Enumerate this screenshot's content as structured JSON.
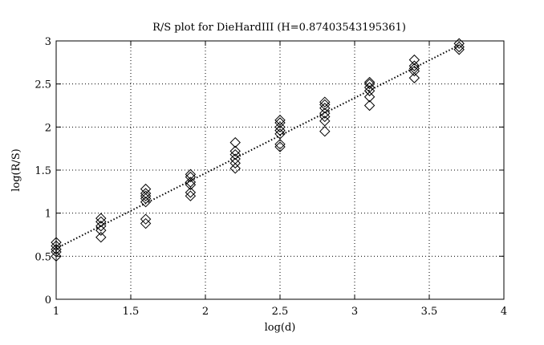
{
  "chart_data": {
    "type": "scatter",
    "title": "R/S plot for DieHardIII (H=0.87403543195361)",
    "xlabel": "log(d)",
    "ylabel": "log(R/S)",
    "xlim": [
      1,
      4
    ],
    "ylim": [
      0,
      3
    ],
    "xticks": [
      {
        "value": 1,
        "label": "1"
      },
      {
        "value": 1.5,
        "label": "1.5"
      },
      {
        "value": 2,
        "label": "2"
      },
      {
        "value": 2.5,
        "label": "2.5"
      },
      {
        "value": 3,
        "label": "3"
      },
      {
        "value": 3.5,
        "label": "3.5"
      },
      {
        "value": 4,
        "label": "4"
      }
    ],
    "yticks": [
      {
        "value": 0,
        "label": "0"
      },
      {
        "value": 0.5,
        "label": "0.5"
      },
      {
        "value": 1,
        "label": "1"
      },
      {
        "value": 1.5,
        "label": "1.5"
      },
      {
        "value": 2,
        "label": "2"
      },
      {
        "value": 2.5,
        "label": "2.5"
      },
      {
        "value": 3,
        "label": "3"
      }
    ],
    "grid": true,
    "marker": "diamond",
    "points": [
      {
        "x": 1.0,
        "y": 0.5
      },
      {
        "x": 1.0,
        "y": 0.55
      },
      {
        "x": 1.0,
        "y": 0.58
      },
      {
        "x": 1.0,
        "y": 0.62
      },
      {
        "x": 1.0,
        "y": 0.66
      },
      {
        "x": 1.3,
        "y": 0.72
      },
      {
        "x": 1.3,
        "y": 0.8
      },
      {
        "x": 1.3,
        "y": 0.85
      },
      {
        "x": 1.3,
        "y": 0.9
      },
      {
        "x": 1.3,
        "y": 0.94
      },
      {
        "x": 1.6,
        "y": 0.88
      },
      {
        "x": 1.6,
        "y": 0.93
      },
      {
        "x": 1.6,
        "y": 1.13
      },
      {
        "x": 1.6,
        "y": 1.17
      },
      {
        "x": 1.6,
        "y": 1.2
      },
      {
        "x": 1.6,
        "y": 1.23
      },
      {
        "x": 1.6,
        "y": 1.28
      },
      {
        "x": 1.9,
        "y": 1.2
      },
      {
        "x": 1.9,
        "y": 1.24
      },
      {
        "x": 1.9,
        "y": 1.33
      },
      {
        "x": 1.9,
        "y": 1.36
      },
      {
        "x": 1.9,
        "y": 1.42
      },
      {
        "x": 1.9,
        "y": 1.45
      },
      {
        "x": 2.2,
        "y": 1.52
      },
      {
        "x": 2.2,
        "y": 1.58
      },
      {
        "x": 2.2,
        "y": 1.63
      },
      {
        "x": 2.2,
        "y": 1.68
      },
      {
        "x": 2.2,
        "y": 1.72
      },
      {
        "x": 2.2,
        "y": 1.82
      },
      {
        "x": 2.5,
        "y": 1.77
      },
      {
        "x": 2.5,
        "y": 1.8
      },
      {
        "x": 2.5,
        "y": 1.92
      },
      {
        "x": 2.5,
        "y": 1.96
      },
      {
        "x": 2.5,
        "y": 2.0
      },
      {
        "x": 2.5,
        "y": 2.05
      },
      {
        "x": 2.5,
        "y": 2.08
      },
      {
        "x": 2.8,
        "y": 1.95
      },
      {
        "x": 2.8,
        "y": 2.07
      },
      {
        "x": 2.8,
        "y": 2.12
      },
      {
        "x": 2.8,
        "y": 2.16
      },
      {
        "x": 2.8,
        "y": 2.22
      },
      {
        "x": 2.8,
        "y": 2.26
      },
      {
        "x": 2.8,
        "y": 2.29
      },
      {
        "x": 3.1,
        "y": 2.25
      },
      {
        "x": 3.1,
        "y": 2.35
      },
      {
        "x": 3.1,
        "y": 2.42
      },
      {
        "x": 3.1,
        "y": 2.46
      },
      {
        "x": 3.1,
        "y": 2.5
      },
      {
        "x": 3.1,
        "y": 2.52
      },
      {
        "x": 3.4,
        "y": 2.57
      },
      {
        "x": 3.4,
        "y": 2.65
      },
      {
        "x": 3.4,
        "y": 2.68
      },
      {
        "x": 3.4,
        "y": 2.71
      },
      {
        "x": 3.4,
        "y": 2.78
      },
      {
        "x": 3.7,
        "y": 2.9
      },
      {
        "x": 3.7,
        "y": 2.93
      },
      {
        "x": 3.7,
        "y": 2.97
      }
    ],
    "fit_line": {
      "x": [
        1.0,
        3.7
      ],
      "y": [
        0.59,
        2.95
      ],
      "style": "dotted"
    }
  }
}
